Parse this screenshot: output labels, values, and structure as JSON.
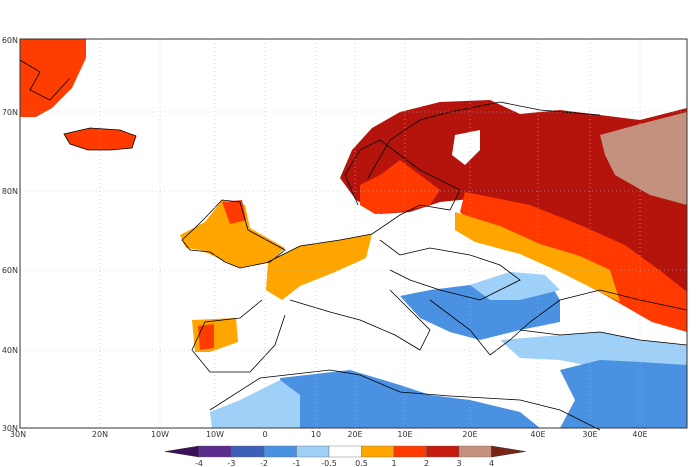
{
  "map": {
    "lat_labels": [
      "60N",
      "70N",
      "80N",
      "60N",
      "40N",
      "30N"
    ],
    "lon_labels": [
      "30N",
      "20N",
      "10W",
      "10W",
      "0",
      "10",
      "20E",
      "10E",
      "20E",
      "40E",
      "30E",
      "40E"
    ],
    "grid": "dotted",
    "colors": {
      "ocean_land_background": "#ffffff",
      "coastline": "#000000"
    }
  },
  "colorbar": {
    "ticks": [
      "-4",
      "-3",
      "-2",
      "-1",
      "-0.5",
      "0.5",
      "1",
      "2",
      "3",
      "4"
    ],
    "colors": [
      "#3a0f5c",
      "#5a2d8c",
      "#3d5fb5",
      "#4a91e2",
      "#9fd0f7",
      "#ffffff",
      "#ffa500",
      "#ff3a00",
      "#c41a10",
      "#c4917f",
      "#7a2418"
    ]
  }
}
